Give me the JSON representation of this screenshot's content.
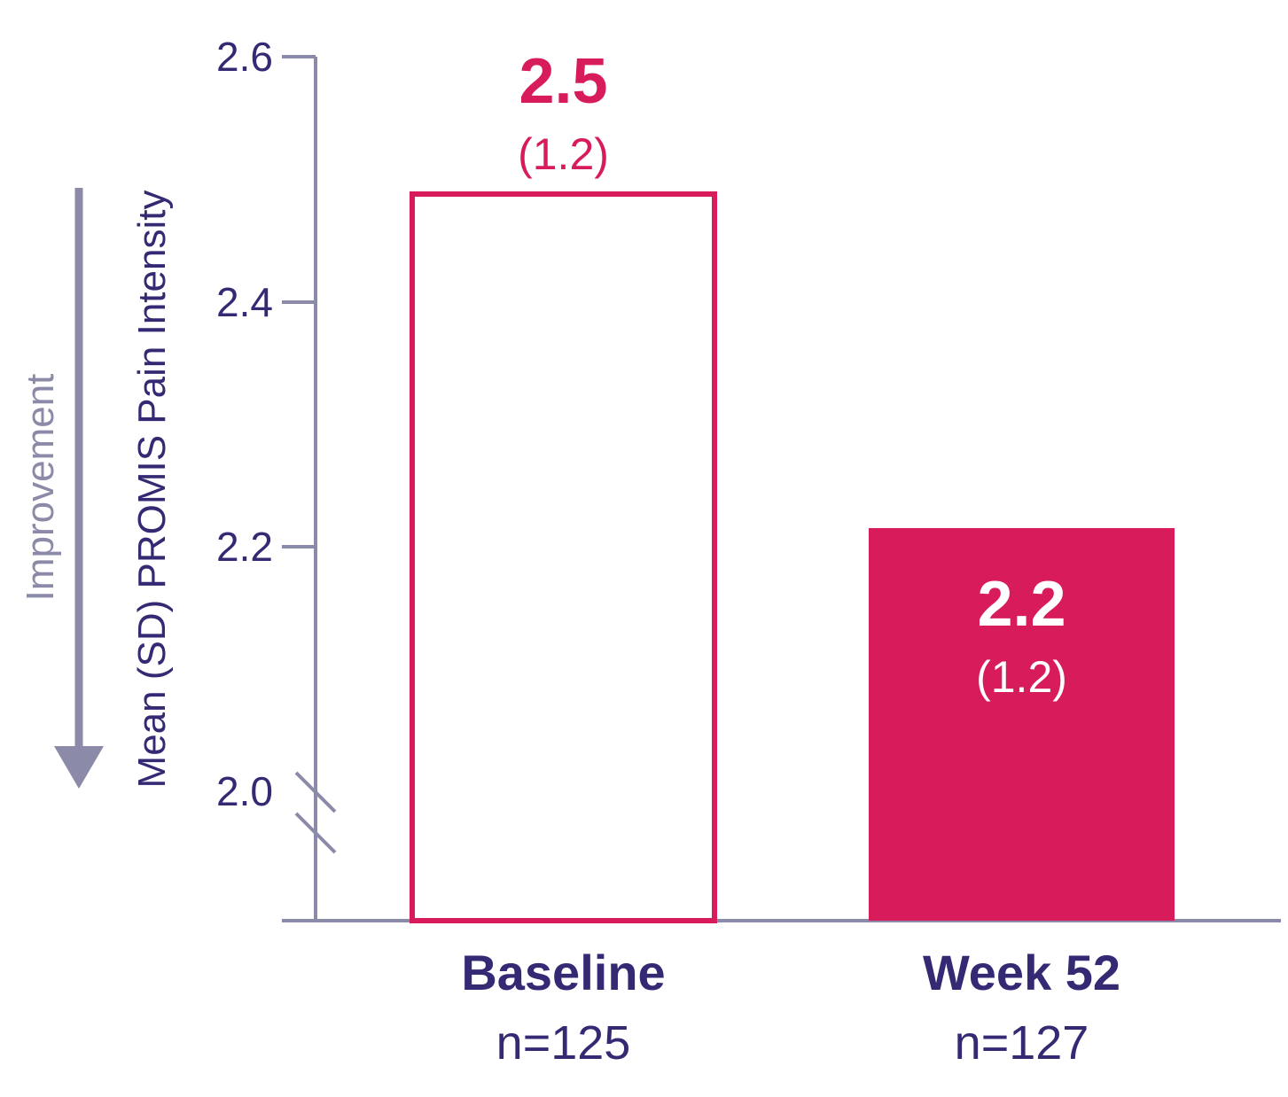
{
  "chart_data": {
    "type": "bar",
    "ylabel": "Mean (SD) PROMIS Pain Intensity",
    "annotation": "Improvement",
    "yticks": [
      "2.6",
      "2.4",
      "2.2",
      "2.0"
    ],
    "ylim": [
      1.9,
      2.6
    ],
    "axis_break": true,
    "categories": [
      {
        "label": "Baseline",
        "n": "n=125",
        "value": 2.49,
        "value_label": "2.5",
        "sd_label": "(1.2)",
        "style": "outline"
      },
      {
        "label": "Week 52",
        "n": "n=127",
        "value": 2.215,
        "value_label": "2.2",
        "sd_label": "(1.2)",
        "style": "filled"
      }
    ],
    "colors": {
      "bar": "#d81b5b",
      "axis": "#8b8aa8",
      "text": "#332a73",
      "arrow": "#8b8aa8"
    }
  }
}
